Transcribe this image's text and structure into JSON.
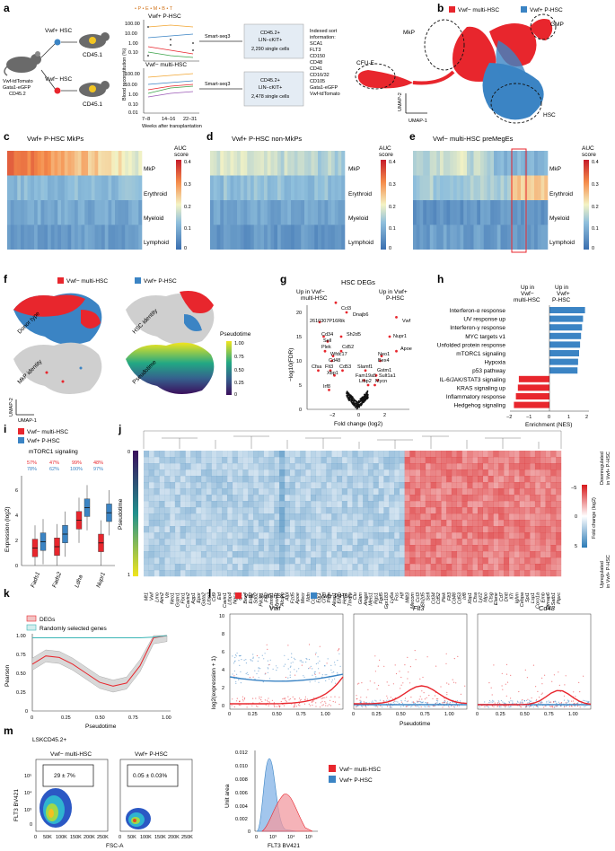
{
  "panel_letters": [
    "a",
    "b",
    "c",
    "d",
    "e",
    "f",
    "g",
    "h",
    "i",
    "j",
    "k",
    "l",
    "m"
  ],
  "colors": {
    "multi": "#e8262d",
    "p": "#3b84c4",
    "grey": "#c8c8c8"
  },
  "panel_a": {
    "donor_mouse": [
      "Vwf-tdTomato",
      "Gata1-eGFP",
      "CD45.2"
    ],
    "top_graft": "Vwf+ HSC",
    "bottom_graft": "Vwf− HSC",
    "recipient_top": "CD45.1",
    "recipient_bottom": "CD45.1",
    "legend": "• P • E • M • B • T",
    "top_title": "Vwf+ P-HSC",
    "bottom_title": "Vwf− multi-HSC",
    "ylabel": "Blood reconstitution (%)",
    "xticks": [
      "7–8",
      "14–16",
      "22–31"
    ],
    "yticks": [
      "100.00",
      "10.00",
      "1.00",
      "0.10",
      "0.01"
    ],
    "xlabel": "Weeks after transplantation",
    "smartseq": "Smart-seq3",
    "top_box": [
      "CD45.2+",
      "LIN−cKIT+",
      "2,290 single cells"
    ],
    "bottom_box": [
      "CD45.2+",
      "LIN−cKIT+",
      "2,478 single cells"
    ],
    "sort_info": [
      "Indexed sort",
      "information:",
      "SCA1",
      "FLT3",
      "CD150",
      "CD48",
      "CD41",
      "CD16/32",
      "CD105",
      "Gata1-eGFP",
      "Vwf-tdTomato"
    ]
  },
  "panel_b": {
    "legend": [
      "Vwf− multi-HSC",
      "Vwf+ P-HSC"
    ],
    "labels": [
      "GMP",
      "MkP",
      "CFU-E",
      "HSC"
    ],
    "axes": [
      "UMAP-1",
      "UMAP-2"
    ]
  },
  "heatmaps": {
    "rows": [
      "MkP",
      "Erythroid",
      "Myeloid",
      "Lymphoid"
    ],
    "c_title": "Vwf+ P-HSC MkPs",
    "d_title": "Vwf+ P-HSC non-MkPs",
    "e_title": "Vwf− multi-HSC preMegEs",
    "colorbar_title": [
      "AUC",
      "score"
    ],
    "colorbar_ticks": [
      "0.4",
      "0.3",
      "0.2",
      "0.1",
      "0"
    ]
  },
  "panel_f": {
    "legend": [
      "Vwf− multi-HSC",
      "Vwf+ P-HSC"
    ],
    "sub_labels": [
      "Donor type",
      "HSC identity",
      "MkP identity",
      "Pseudotime"
    ],
    "pseudotime_title": "Pseudotime",
    "pseudotime_ticks": [
      "1.00",
      "0.75",
      "0.50",
      "0.25",
      "0"
    ],
    "axes": [
      "UMAP-1",
      "UMAP-2"
    ]
  },
  "panel_g": {
    "title": "HSC DEGs",
    "left_header": [
      "Up in Vwf−",
      "multi-HSC"
    ],
    "right_header": [
      "Up in Vwf+",
      "P-HSC"
    ],
    "ylabel": "−log10(FDR)",
    "xlabel": "Fold change (log2)",
    "xticks": [
      "−2",
      "0",
      "2"
    ],
    "yticks": [
      "20",
      "15",
      "10",
      "5",
      "0"
    ],
    "genes": [
      "Ccl3",
      "Dnajb6",
      "2610307P16Rik",
      "Cd34",
      "Sh2d5",
      "Sell",
      "Plek",
      "Cd52",
      "Wfdc17",
      "Cd48",
      "Flt3",
      "Xbp1",
      "Cd53",
      "Cfsa",
      "Irf8",
      "Vwf",
      "Nupr1",
      "Apoe",
      "Neo1",
      "Bex4",
      "Slamf1",
      "Gstm1",
      "Sult1a1",
      "Fam19a5",
      "Ltbp2",
      "Mycn"
    ]
  },
  "panel_h": {
    "header_left": [
      "Up in",
      "Vwf−",
      "multi-HSC"
    ],
    "header_right": [
      "Up in",
      "Vwf+",
      "P-HSC"
    ],
    "pathways": [
      "Interferon-α response",
      "UV response up",
      "Interferon-γ response",
      "MYC targets v1",
      "Unfolded protein response",
      "mTORC1 signaling",
      "Hypoxia",
      "p53 pathway",
      "IL-6/JAK/STAT3 signaling",
      "KRAS signaling up",
      "Inflammatory response",
      "Hedgehog signaling"
    ],
    "xlabel": "Enrichment (NES)",
    "xticks": [
      "−2",
      "−1",
      "0",
      "1",
      "2"
    ]
  },
  "panel_i": {
    "legend": [
      "Vwf− multi-HSC",
      "Vwf+ P-HSC"
    ],
    "subtitle": "mTORC1 signaling",
    "pct_multi": [
      "57%",
      "47%",
      "99%",
      "48%"
    ],
    "pct_p": [
      "78%",
      "62%",
      "100%",
      "97%"
    ],
    "genes": [
      "Fads1",
      "Fads2",
      "Ldha",
      "Nupr1"
    ],
    "ylabel": "Expression (log2)",
    "yticks": [
      "6",
      "4",
      "2",
      "0"
    ]
  },
  "panel_j": {
    "ylabel": "Pseudotime",
    "yticks": [
      "0",
      "1"
    ],
    "colorbar_title": "Fold change (log2)",
    "colorbar_ticks": [
      "−5",
      "0",
      "5"
    ],
    "side_top": [
      "Downregulated",
      "in Vwf+ P-HSC"
    ],
    "side_bottom": [
      "Upregulated",
      "in Vwf+ P-HSC"
    ],
    "genes": [
      "Mt1",
      "Vwf",
      "Lmo",
      "Aim2",
      "Vit",
      "Neo1",
      "Gstm1",
      "Fbn1",
      "Cavin2",
      "Aqp1",
      "Epor",
      "Gata2",
      "Ltbp2",
      "Cd9",
      "Eid",
      "Cavin1",
      "Ltbp4",
      "Ngsa",
      "Ghl",
      "Bex4",
      "Esd2",
      "Sdc2",
      "Pik3r1",
      "Fhl2",
      "Ctnna1",
      "Myom1",
      "Alcam",
      "Alpl",
      "Fzd5",
      "Apoe",
      "Mecr",
      "Ndn",
      "Cd81",
      "Egr1",
      "Chrd",
      "Ptpn",
      "Akap1",
      "Eif4b",
      "Hes1",
      "Tmem",
      "Clu",
      "Glam",
      "Angpt",
      "Meis1",
      "Rgs1",
      "Fgd5",
      "Gpr183",
      "Ly6a",
      "Fos",
      "Hlf",
      "Mllt3",
      "Mecom",
      "Ccl3",
      "Sh2d5",
      "Sell",
      "Cd34",
      "Cd52",
      "Plek",
      "Flt3",
      "Cd48",
      "Cd53",
      "Irf8",
      "Xbp1",
      "Cfsa",
      "Lyz2",
      "Mpo",
      "Ctsg",
      "Elane",
      "Cd7",
      "Dntt",
      "Il7r",
      "Ighm",
      "Cebpa",
      "Spi1",
      "Lsp1",
      "Coro1a",
      "Emb",
      "Gimap6",
      "Satb1",
      "Ptprc"
    ]
  },
  "panel_k": {
    "legend": [
      "DEGs",
      "Randomly selected genes"
    ],
    "ylabel": "Pearson",
    "xlabel": "Pseudotime",
    "xticks": [
      "0",
      "0.25",
      "0.50",
      "0.75",
      "1.00"
    ],
    "yticks": [
      "1.00",
      "0.75",
      "0.50",
      "0.25",
      "0"
    ]
  },
  "panel_l": {
    "legend": [
      "Vwf− multi-HSC",
      "Vwf+ P-HSC"
    ],
    "genes": [
      "Vwf",
      "Flt3",
      "Cd48"
    ],
    "ylabel": "log2(expression + 1)",
    "xlabel": "Pseudotime",
    "xticks": [
      "0",
      "0.25",
      "0.50",
      "0.75",
      "1.00"
    ],
    "yticks": [
      "10",
      "8",
      "6",
      "4",
      "2",
      "0"
    ]
  },
  "panel_m": {
    "gate_header": "LSKCD45.2+",
    "left_title": "Vwf− multi-HSC",
    "right_title": "Vwf+ P-HSC",
    "left_gate": "29 ± 7%",
    "right_gate": "0.05 ± 0.03%",
    "ylabel": "FLT3 BV421",
    "xlabel": "FSC-A",
    "xticks": [
      "0",
      "50K",
      "100K",
      "150K",
      "200K",
      "250K"
    ],
    "yticks": [
      "10⁵",
      "10⁴",
      "10³",
      "0"
    ],
    "hist_ylabel": "Unit area",
    "hist_yticks": [
      "0.012",
      "0.010",
      "0.008",
      "0.006",
      "0.004",
      "0.002",
      "0"
    ],
    "hist_xticks": [
      "0",
      "10³",
      "10⁴",
      "10⁵"
    ],
    "hist_xlabel": "FLT3 BV421",
    "legend": [
      "Vwf− multi-HSC",
      "Vwf+ P-HSC"
    ]
  },
  "chart_data": [
    {
      "type": "bar",
      "panel": "h",
      "title": "Hallmark gene set enrichment",
      "categories": [
        "Interferon-α response",
        "UV response up",
        "Interferon-γ response",
        "MYC targets v1",
        "Unfolded protein response",
        "mTORC1 signaling",
        "Hypoxia",
        "p53 pathway",
        "IL-6/JAK/STAT3 signaling",
        "KRAS signaling up",
        "Inflammatory response",
        "Hedgehog signaling"
      ],
      "values": [
        1.8,
        1.7,
        1.65,
        1.6,
        1.55,
        1.5,
        1.45,
        1.42,
        -1.55,
        -1.6,
        -1.7,
        -1.8
      ],
      "xlabel": "Enrichment (NES)",
      "xlim": [
        -2,
        2
      ]
    },
    {
      "type": "line",
      "panel": "k",
      "x": [
        0,
        0.1,
        0.2,
        0.3,
        0.4,
        0.5,
        0.6,
        0.7,
        0.8,
        0.9,
        1.0
      ],
      "series": [
        {
          "name": "DEGs",
          "values": [
            0.62,
            0.73,
            0.71,
            0.62,
            0.5,
            0.38,
            0.33,
            0.37,
            0.6,
            0.97,
            1.0
          ]
        },
        {
          "name": "Randomly selected genes",
          "values": [
            0.97,
            0.97,
            0.97,
            0.97,
            0.97,
            0.97,
            0.97,
            0.97,
            0.97,
            0.98,
            1.0
          ]
        }
      ],
      "xlabel": "Pseudotime",
      "ylabel": "Pearson",
      "ylim": [
        0,
        1
      ]
    },
    {
      "type": "bar",
      "panel": "i",
      "title": "mTORC1 signaling (box medians)",
      "categories": [
        "Fads1",
        "Fads2",
        "Ldha",
        "Nupr1"
      ],
      "series": [
        {
          "name": "Vwf− multi-HSC",
          "values": [
            1.4,
            1.5,
            3.6,
            1.8
          ]
        },
        {
          "name": "Vwf+ P-HSC",
          "values": [
            1.9,
            2.5,
            4.6,
            4.2
          ]
        }
      ],
      "ylabel": "Expression (log2)",
      "ylim": [
        0,
        7
      ]
    }
  ]
}
